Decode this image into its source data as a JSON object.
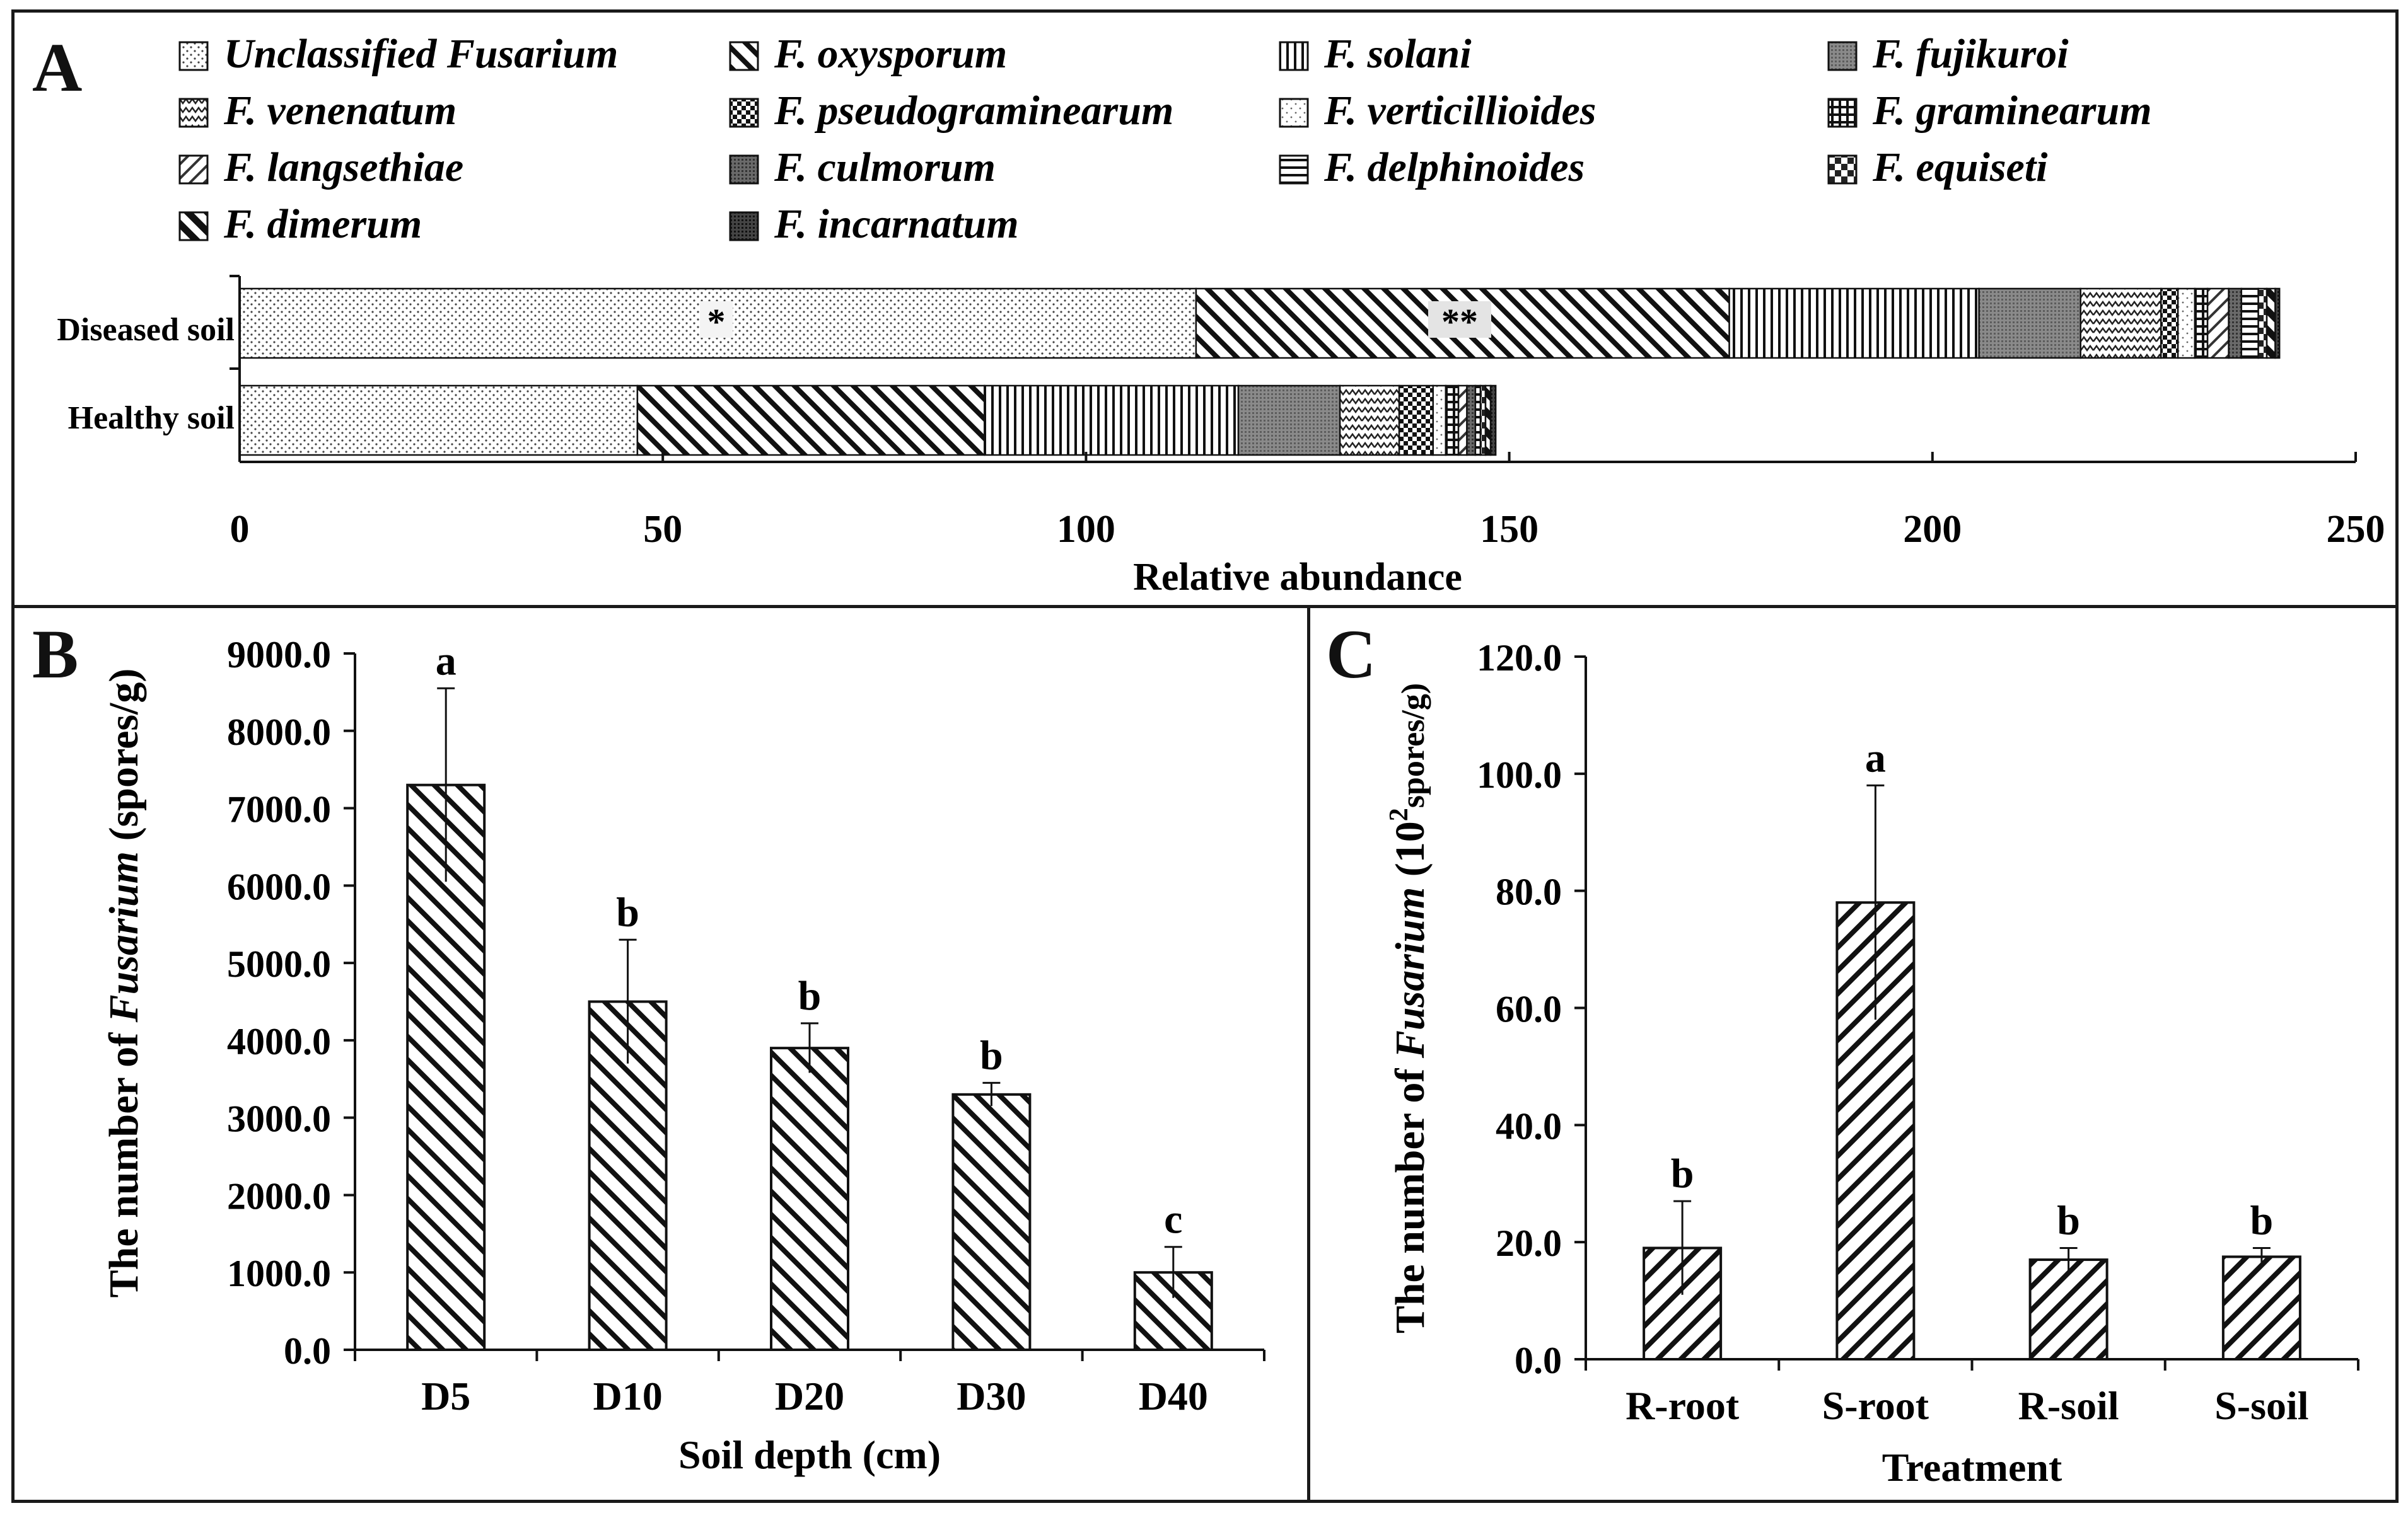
{
  "panel_labels": {
    "a": "A",
    "b": "B",
    "c": "C"
  },
  "chart_data": [
    {
      "panel": "A",
      "type": "bar",
      "orientation": "horizontal",
      "stacked": true,
      "xlabel": "Relative abundance",
      "xlim": [
        0,
        250
      ],
      "xticks": [
        0,
        50,
        100,
        150,
        200,
        250
      ],
      "categories": [
        "Diseased soil",
        "Healthy soil"
      ],
      "legend": [
        {
          "name": "Unclassified  Fusarium",
          "pattern": "dots"
        },
        {
          "name": "F. oxysporum",
          "pattern": "diag-down"
        },
        {
          "name": "F. solani",
          "pattern": "vertical"
        },
        {
          "name": "F. fujikuroi",
          "pattern": "dense-gray"
        },
        {
          "name": "F. venenatum",
          "pattern": "zigzag"
        },
        {
          "name": "F. pseudograminearum",
          "pattern": "checker"
        },
        {
          "name": "F. verticillioides",
          "pattern": "sparse-dots"
        },
        {
          "name": "F. graminearum",
          "pattern": "grid"
        },
        {
          "name": "F. langsethiae",
          "pattern": "diag-up"
        },
        {
          "name": "F. culmorum",
          "pattern": "dark-gray"
        },
        {
          "name": "F. delphinoides",
          "pattern": "horizontal"
        },
        {
          "name": "F. equiseti",
          "pattern": "big-checker"
        },
        {
          "name": "F. dimerum",
          "pattern": "diag-down-thick"
        },
        {
          "name": "F. incarnatum",
          "pattern": "darker"
        }
      ],
      "series": [
        {
          "name": "Unclassified  Fusarium",
          "values": [
            113,
            47
          ]
        },
        {
          "name": "F. oxysporum",
          "values": [
            63,
            41
          ]
        },
        {
          "name": "F. solani",
          "values": [
            29.5,
            30
          ]
        },
        {
          "name": "F. fujikuroi",
          "values": [
            12,
            12
          ]
        },
        {
          "name": "F. venenatum",
          "values": [
            9.5,
            7
          ]
        },
        {
          "name": "F. pseudograminearum",
          "values": [
            2,
            4
          ]
        },
        {
          "name": "F. verticillioides",
          "values": [
            2,
            1.5
          ]
        },
        {
          "name": "F. graminearum",
          "values": [
            1.5,
            1.5
          ]
        },
        {
          "name": "F. langsethiae",
          "values": [
            2.5,
            1
          ]
        },
        {
          "name": "F. culmorum",
          "values": [
            1.5,
            1
          ]
        },
        {
          "name": "F. delphinoides",
          "values": [
            2,
            0.6
          ]
        },
        {
          "name": "F. equiseti",
          "values": [
            1,
            0.6
          ]
        },
        {
          "name": "F. dimerum",
          "values": [
            1,
            0.6
          ]
        },
        {
          "name": "F. incarnatum",
          "values": [
            0.5,
            0.6
          ]
        }
      ],
      "annotations": [
        "*",
        "**"
      ]
    },
    {
      "panel": "B",
      "type": "bar",
      "ylabel_prefix": "The number of ",
      "ylabel_italic": "Fusarium",
      "ylabel_suffix": " (spores/g)",
      "xlabel": "Soil depth (cm)",
      "ylim": [
        0,
        9000
      ],
      "ytick_labels": [
        "0.0",
        "1000.0",
        "2000.0",
        "3000.0",
        "4000.0",
        "5000.0",
        "6000.0",
        "7000.0",
        "8000.0",
        "9000.0"
      ],
      "categories": [
        "D5",
        "D10",
        "D20",
        "D30",
        "D40"
      ],
      "values": [
        7300,
        4500,
        3900,
        3300,
        1000
      ],
      "errors": [
        1250,
        800,
        320,
        150,
        330
      ],
      "letters": [
        "a",
        "b",
        "b",
        "b",
        "c"
      ]
    },
    {
      "panel": "C",
      "type": "bar",
      "ylabel_prefix": "The number of ",
      "ylabel_italic": "Fusarium",
      "ylabel_suffix": " (10",
      "ylabel_sup": "2",
      "ylabel_end": "spores/g)",
      "xlabel": "Treatment",
      "ylim": [
        0,
        120
      ],
      "ytick_labels": [
        "0.0",
        "20.0",
        "40.0",
        "60.0",
        "80.0",
        "100.0",
        "120.0"
      ],
      "categories": [
        "R-root",
        "S-root",
        "R-soil",
        "S-soil"
      ],
      "values": [
        19,
        78,
        17,
        17.5
      ],
      "errors": [
        8,
        20,
        2,
        1.5
      ],
      "letters": [
        "b",
        "a",
        "b",
        "b"
      ]
    }
  ]
}
